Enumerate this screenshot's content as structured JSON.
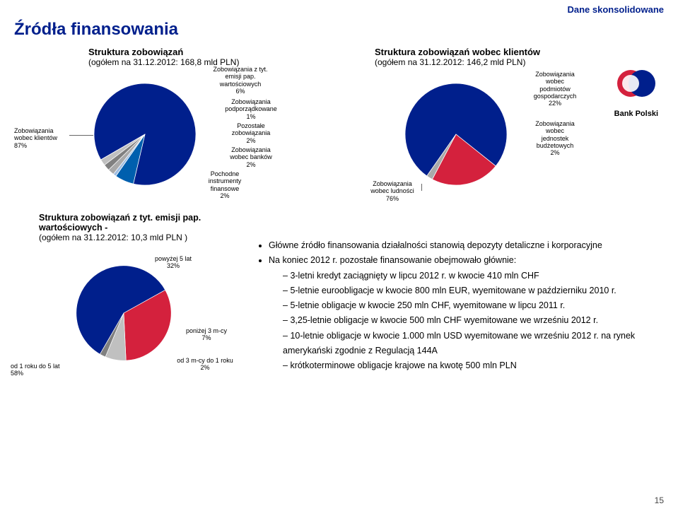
{
  "header_right": "Dane skonsolidowane",
  "title": "Źródła finansowania",
  "logo_text": "Bank Polski",
  "logo_colors": {
    "red": "#d4213d",
    "navy": "#001f8c"
  },
  "chart1": {
    "type": "pie",
    "title": "Struktura zobowiązań",
    "subtitle": "(ogółem na 31.12.2012: 168,8 mld PLN)",
    "size": 150,
    "slices": [
      {
        "label": "Zobowiązania wobec klientów",
        "pct": "87%",
        "value": 87,
        "color": "#001f8c"
      },
      {
        "label": "Zobowiązania z tyt. emisji pap. wartościowych",
        "pct": "6%",
        "value": 6,
        "color": "#005fae"
      },
      {
        "label": "Zobowiązania podporządkowane",
        "pct": "1%",
        "value": 1,
        "color": "#a0bde0"
      },
      {
        "label": "Pozostałe zobowiązania",
        "pct": "2%",
        "value": 2,
        "color": "#a9a9a9"
      },
      {
        "label": "Zobowiązania wobec banków",
        "pct": "2%",
        "value": 2,
        "color": "#808080"
      },
      {
        "label": "Pochodne instrumenty finansowe",
        "pct": "2%",
        "value": 2,
        "color": "#c0c0c0"
      }
    ]
  },
  "chart2": {
    "type": "pie",
    "title": "Struktura zobowiązań wobec klientów",
    "subtitle": "(ogółem na 31.12.2012: 146,2 mld PLN)",
    "size": 150,
    "slices": [
      {
        "label": "Zobowiązania wobec ludności",
        "pct": "76%",
        "value": 76,
        "color": "#001f8c"
      },
      {
        "label": "Zobowiązania wobec podmiotów gospodarczych",
        "pct": "22%",
        "value": 22,
        "color": "#d4213d"
      },
      {
        "label": "Zobowiązania wobec jednostek budżetowych",
        "pct": "2%",
        "value": 2,
        "color": "#a9a9a9"
      }
    ]
  },
  "chart3": {
    "type": "pie",
    "title": "Struktura zobowiązań z tyt. emisji pap. wartościowych -",
    "subtitle": "(ogółem na 31.12.2012: 10,3 mld PLN )",
    "size": 140,
    "slices": [
      {
        "label": "od 1 roku do 5 lat",
        "pct": "58%",
        "value": 58,
        "color": "#001f8c"
      },
      {
        "label": "powyżej 5 lat",
        "pct": "32%",
        "value": 32,
        "color": "#d4213d"
      },
      {
        "label": "poniżej 3 m-cy",
        "pct": "7%",
        "value": 7,
        "color": "#c0c0c0"
      },
      {
        "label": "od 3 m-cy do 1 roku",
        "pct": "2%",
        "value": 2,
        "color": "#808080"
      }
    ]
  },
  "bullets": {
    "line1": "Główne źródło finansowania działalności stanowią depozyty detaliczne i korporacyjne",
    "line2": "Na koniec 2012 r. pozostałe finansowanie obejmowało głównie:",
    "items": [
      "3-letni kredyt zaciągnięty w lipcu 2012 r. w kwocie 410 mln CHF",
      "5-letnie euroobligacje w kwocie 800 mln EUR, wyemitowane w październiku 2010 r.",
      "5-letnie obligacje w kwocie 250 mln CHF, wyemitowane w lipcu 2011 r.",
      "3,25-letnie obligacje w kwocie 500 mln CHF wyemitowane we wrześniu 2012 r.",
      "10-letnie obligacje w kwocie 1.000 mln USD wyemitowane we wrześniu 2012 r. na rynek amerykański zgodnie z Regulacją 144A",
      "krótkoterminowe obligacje krajowe na kwotę 500 mln PLN"
    ]
  },
  "page_number": "15"
}
